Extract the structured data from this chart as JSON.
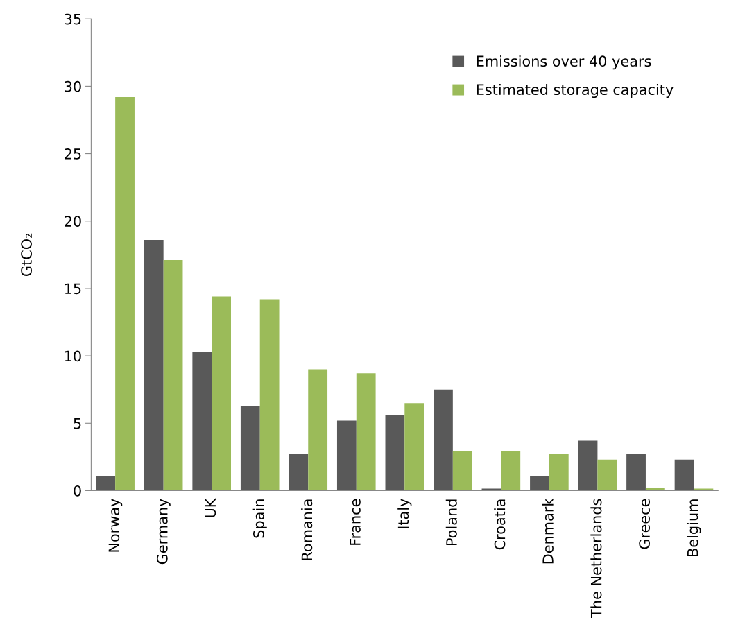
{
  "chart_data": {
    "type": "bar",
    "ylabel": "GtCO₂",
    "categories": [
      "Norway",
      "Germany",
      "UK",
      "Spain",
      "Romania",
      "France",
      "Italy",
      "Poland",
      "Croatia",
      "Denmark",
      "The Netherlands",
      "Greece",
      "Belgium"
    ],
    "series": [
      {
        "name": "Emissions over 40 years",
        "color": "#595959",
        "values": [
          1.1,
          18.6,
          10.3,
          6.3,
          2.7,
          5.2,
          5.6,
          7.5,
          0.15,
          1.1,
          3.7,
          2.7,
          2.3
        ]
      },
      {
        "name": "Estimated storage capacity",
        "color": "#9bbb59",
        "values": [
          29.2,
          17.1,
          14.4,
          14.2,
          9.0,
          8.7,
          6.5,
          2.9,
          2.9,
          2.7,
          2.3,
          0.2,
          0.15
        ]
      }
    ],
    "ylim": [
      0,
      35
    ],
    "yticks": [
      0,
      5,
      10,
      15,
      20,
      25,
      30,
      35
    ],
    "grid": false,
    "legend": "top right"
  }
}
